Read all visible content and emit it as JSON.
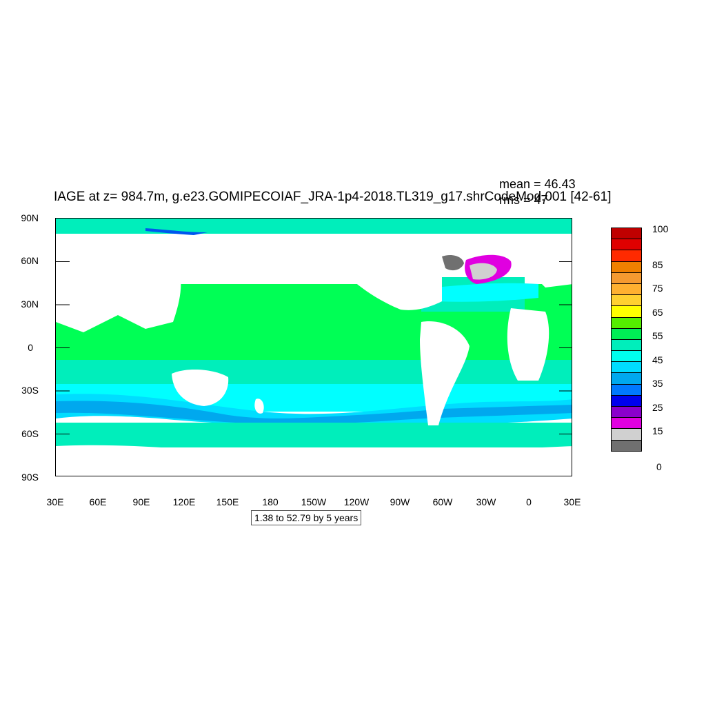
{
  "title": "IAGE at z= 984.7m, g.e23.GOMIPECOIAF_JRA-1p4-2018.TL319_g17.shrCodeMod.001 [42-61]",
  "stats": {
    "mean": "mean = 46.43",
    "rms": "rms = 47"
  },
  "contour_info": "1.38 to 52.79 by 5 years",
  "axes": {
    "lat_labels": [
      "90N",
      "60N",
      "30N",
      "0",
      "30S",
      "60S",
      "90S"
    ],
    "lon_labels": [
      "30E",
      "60E",
      "90E",
      "120E",
      "150E",
      "180",
      "150W",
      "120W",
      "90W",
      "60W",
      "30W",
      "0",
      "30E"
    ]
  },
  "legend": {
    "colors": [
      "#c00000",
      "#e00000",
      "#ff2a00",
      "#f08000",
      "#f59a30",
      "#ffb030",
      "#ffd030",
      "#ffff00",
      "#55ee00",
      "#00ee55",
      "#00eebb",
      "#00ffee",
      "#00ddff",
      "#00a8ee",
      "#0078ff",
      "#0000ee",
      "#8a00cc",
      "#e000e0",
      "#d0d0d0",
      "#707070"
    ],
    "labels": [
      "100",
      "85",
      "75",
      "65",
      "55",
      "45",
      "35",
      "25",
      "15",
      "0"
    ]
  },
  "map_colors": {
    "ocean_deep_green": "#00ff55",
    "ocean_cyan": "#00ffff",
    "ocean_turquoise": "#00e8cc",
    "ocean_sky": "#00ddff",
    "ocean_blue": "#00a8ee",
    "ocean_darkblue": "#0055ee",
    "magenta": "#e000e0",
    "grey_light": "#d0d0d0",
    "grey_dark": "#707070",
    "land": "#ffffff"
  }
}
